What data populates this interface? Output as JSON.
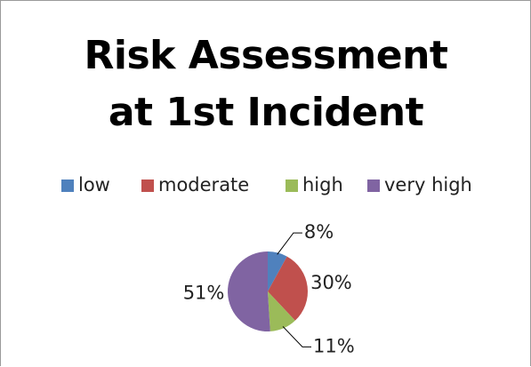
{
  "chart_data": {
    "type": "pie",
    "title": "Risk Assessment at 1st Incident",
    "categories": [
      "low",
      "moderate",
      "high",
      "very high"
    ],
    "values": [
      8,
      30,
      11,
      51
    ],
    "value_labels": [
      "8%",
      "30%",
      "11%",
      "51%"
    ],
    "colors": [
      "#4f81bd",
      "#c0504d",
      "#9bbb59",
      "#8064a2"
    ],
    "legend": "top"
  }
}
